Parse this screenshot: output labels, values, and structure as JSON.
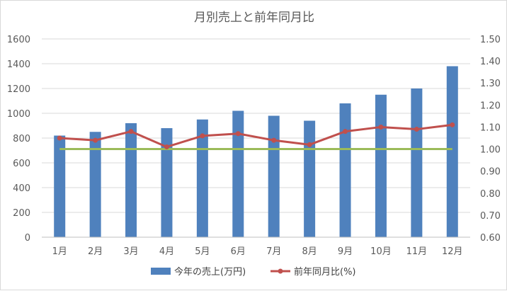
{
  "chart_data": {
    "type": "bar",
    "title": "月別売上と前年同月比",
    "categories": [
      "1月",
      "2月",
      "3月",
      "4月",
      "5月",
      "6月",
      "7月",
      "8月",
      "9月",
      "10月",
      "11月",
      "12月"
    ],
    "series": [
      {
        "name": "今年の売上(万円)",
        "type": "bar",
        "axis": "left",
        "color": "#4f81bd",
        "values": [
          820,
          850,
          920,
          880,
          950,
          1020,
          980,
          940,
          1080,
          1150,
          1200,
          1380
        ]
      },
      {
        "name": "前年同月比(%)",
        "type": "line",
        "axis": "right",
        "color": "#c0504d",
        "markers": true,
        "values": [
          1.05,
          1.04,
          1.08,
          1.01,
          1.06,
          1.07,
          1.04,
          1.02,
          1.08,
          1.1,
          1.09,
          1.11
        ]
      }
    ],
    "reference_line": {
      "axis": "right",
      "value": 1.0,
      "color": "#9bbb59"
    },
    "y_left": {
      "min": 0,
      "max": 1600,
      "step": 200,
      "ticks": [
        "0",
        "200",
        "400",
        "600",
        "800",
        "1000",
        "1200",
        "1400",
        "1600"
      ]
    },
    "y_right": {
      "min": 0.6,
      "max": 1.5,
      "step": 0.1,
      "ticks": [
        "0.60",
        "0.70",
        "0.80",
        "0.90",
        "1.00",
        "1.10",
        "1.20",
        "1.30",
        "1.40",
        "1.50"
      ]
    },
    "grid": true,
    "legend_position": "bottom"
  }
}
